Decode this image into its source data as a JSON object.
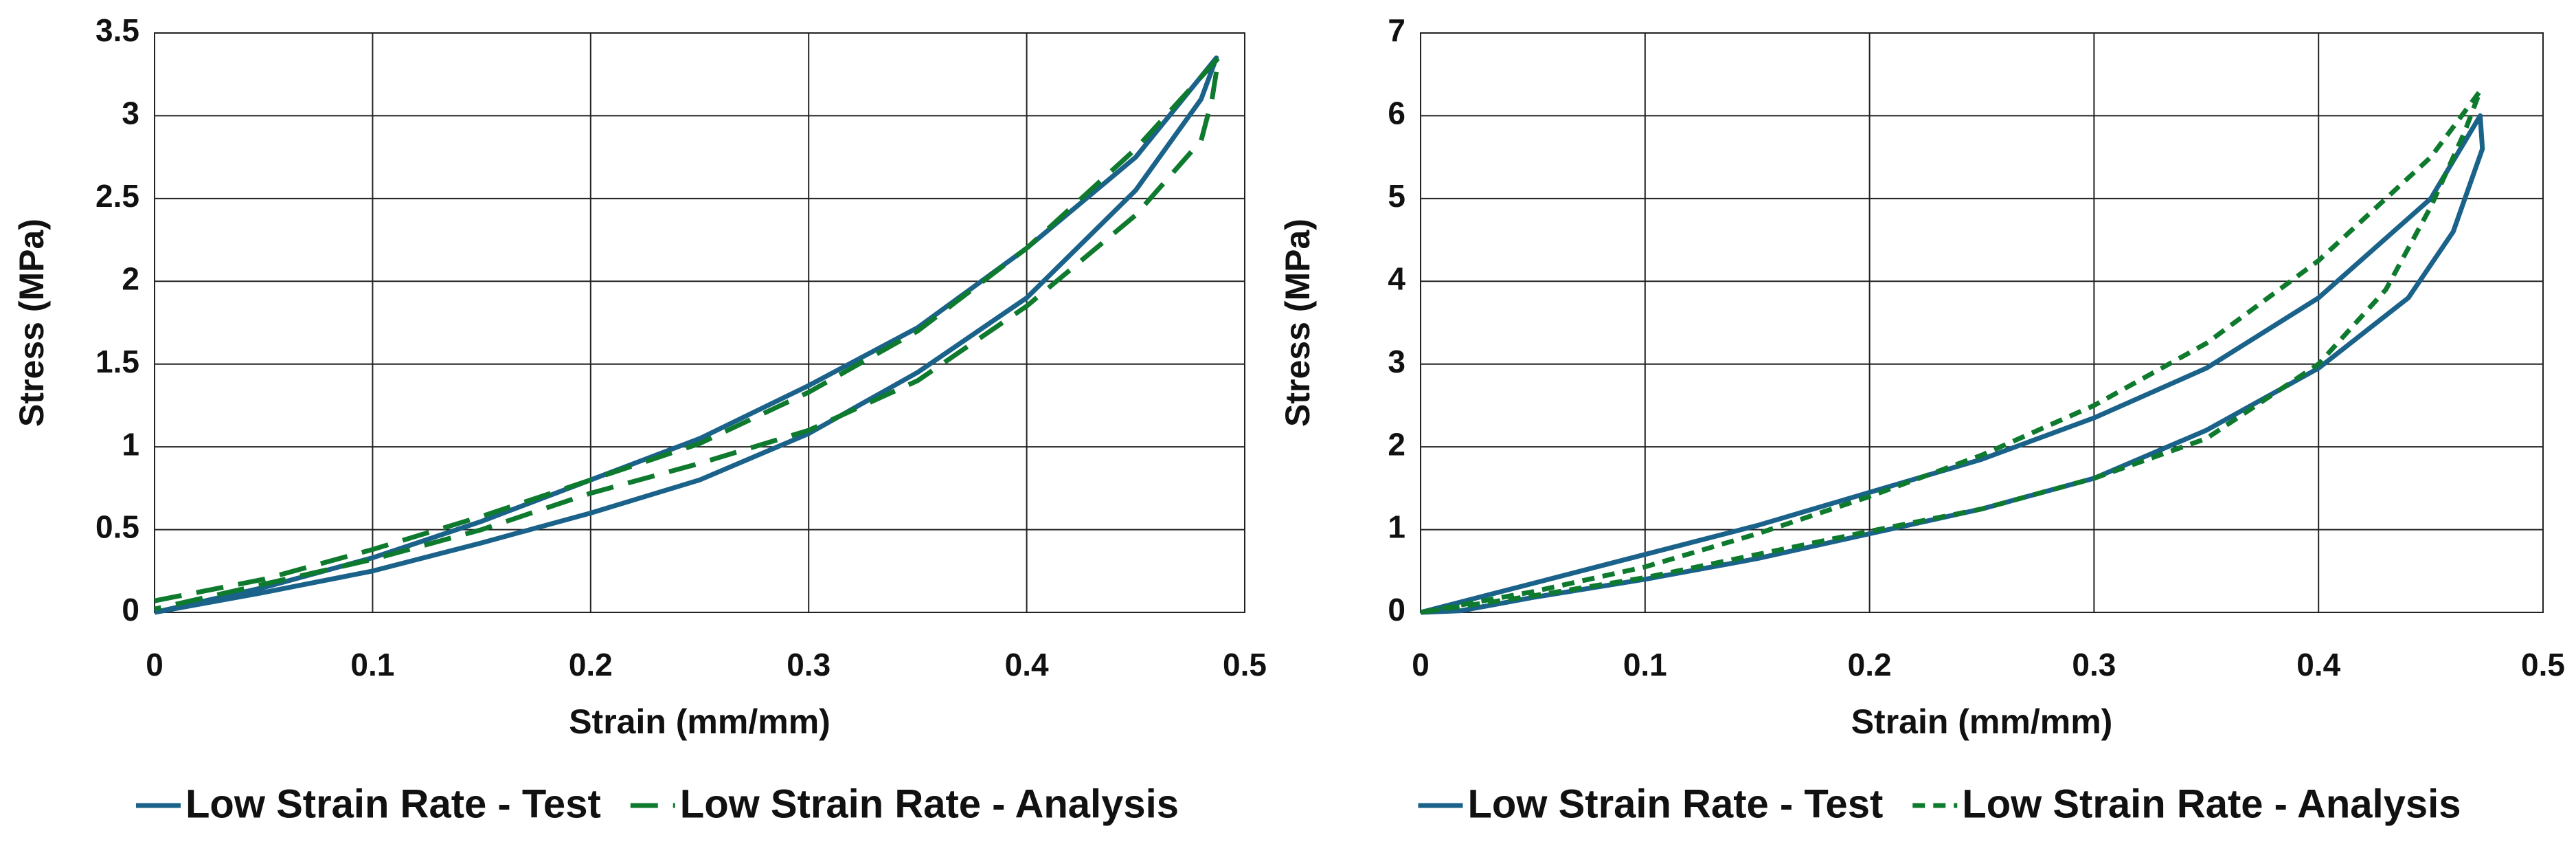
{
  "chart_data": [
    {
      "type": "line",
      "x_label": "Strain (mm/mm)",
      "y_label": "Stress (MPa)",
      "xlim": [
        0,
        0.5
      ],
      "xticks": [
        0,
        0.1,
        0.2,
        0.3,
        0.4,
        0.5
      ],
      "ylim": [
        0,
        3.5
      ],
      "yticks": [
        0,
        0.5,
        1,
        1.5,
        2,
        2.5,
        3,
        3.5
      ],
      "grid": true,
      "series": [
        {
          "name": "Low Strain Rate - Test",
          "color": "#1a6289",
          "x": [
            0,
            0.05,
            0.1,
            0.15,
            0.2,
            0.25,
            0.3,
            0.35,
            0.4,
            0.45,
            0.487,
            0.48,
            0.45,
            0.4,
            0.35,
            0.3,
            0.25,
            0.2,
            0.15,
            0.1,
            0.05,
            0
          ],
          "values": [
            0,
            0.15,
            0.33,
            0.55,
            0.8,
            1.05,
            1.37,
            1.72,
            2.2,
            2.75,
            3.35,
            3.1,
            2.55,
            1.9,
            1.45,
            1.08,
            0.8,
            0.6,
            0.42,
            0.25,
            0.12,
            0
          ]
        },
        {
          "name": "Low Strain Rate - Analysis",
          "color": "#0e7a2e",
          "x": [
            0,
            0.05,
            0.1,
            0.15,
            0.2,
            0.25,
            0.3,
            0.35,
            0.4,
            0.45,
            0.488,
            0.485,
            0.48,
            0.45,
            0.4,
            0.35,
            0.3,
            0.25,
            0.2,
            0.15,
            0.1,
            0.05,
            0
          ],
          "values": [
            0.07,
            0.2,
            0.38,
            0.58,
            0.8,
            1.02,
            1.33,
            1.7,
            2.2,
            2.8,
            3.35,
            3.1,
            2.85,
            2.4,
            1.85,
            1.4,
            1.1,
            0.9,
            0.72,
            0.5,
            0.32,
            0.17,
            0.02
          ]
        }
      ]
    },
    {
      "type": "line",
      "x_label": "Strain (mm/mm)",
      "y_label": "Stress (MPa)",
      "xlim": [
        0,
        0.5
      ],
      "xticks": [
        0,
        0.1,
        0.2,
        0.3,
        0.4,
        0.5
      ],
      "ylim": [
        0,
        7
      ],
      "yticks": [
        0,
        1,
        2,
        3,
        4,
        5,
        6,
        7
      ],
      "grid": true,
      "series": [
        {
          "name": "Low Strain Rate - Test",
          "color": "#1a6289",
          "x": [
            0,
            0.05,
            0.1,
            0.15,
            0.2,
            0.25,
            0.3,
            0.35,
            0.4,
            0.45,
            0.472,
            0.473,
            0.46,
            0.44,
            0.4,
            0.35,
            0.3,
            0.25,
            0.2,
            0.15,
            0.1,
            0.05,
            0.018,
            0
          ],
          "values": [
            0,
            0.35,
            0.7,
            1.05,
            1.45,
            1.85,
            2.35,
            2.95,
            3.8,
            5.0,
            6.0,
            5.6,
            4.6,
            3.8,
            2.95,
            2.2,
            1.62,
            1.25,
            0.95,
            0.65,
            0.4,
            0.18,
            0.02,
            0
          ]
        },
        {
          "name": "Low Strain Rate - Analysis",
          "color": "#0e7a2e",
          "x": [
            0,
            0.05,
            0.1,
            0.15,
            0.2,
            0.25,
            0.3,
            0.35,
            0.4,
            0.45,
            0.472,
            0.465,
            0.45,
            0.43,
            0.4,
            0.35,
            0.3,
            0.25,
            0.2,
            0.15,
            0.1,
            0.05,
            0
          ],
          "values": [
            0,
            0.25,
            0.55,
            0.95,
            1.4,
            1.9,
            2.5,
            3.25,
            4.25,
            5.5,
            6.3,
            5.8,
            4.9,
            3.9,
            3.0,
            2.1,
            1.62,
            1.25,
            0.98,
            0.7,
            0.42,
            0.2,
            0
          ]
        }
      ]
    }
  ]
}
